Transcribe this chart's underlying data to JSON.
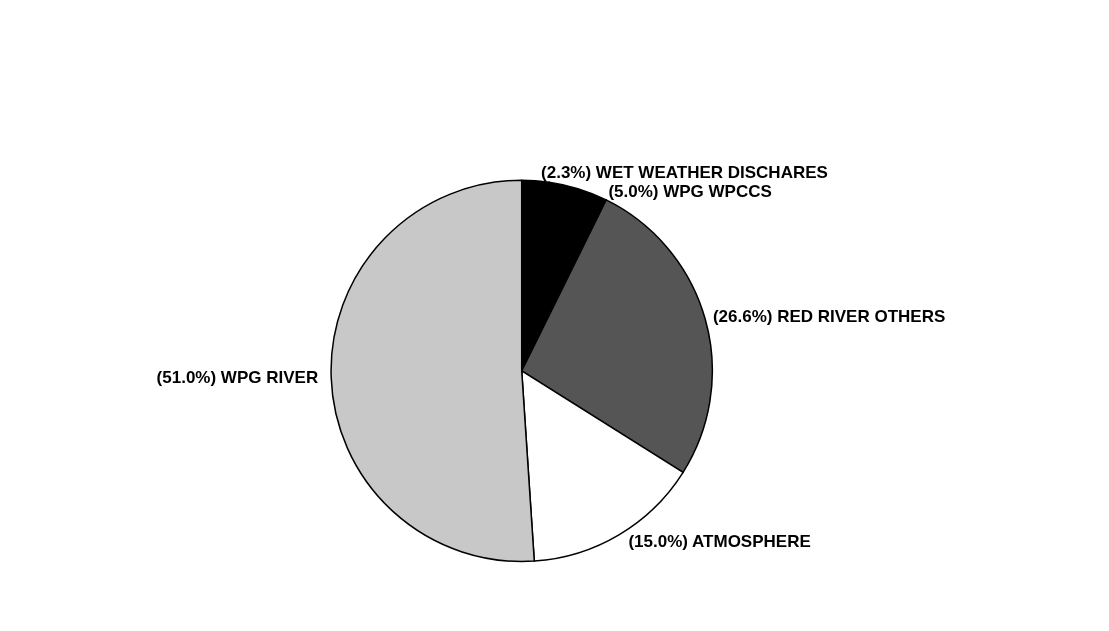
{
  "chart_data": {
    "type": "pie",
    "categories": [
      "(2.3%) WET WEATHER DISCHARES",
      "(5.0%) WPG WPCCS",
      "(26.6%) RED RIVER OTHERS",
      "(15.0%) ATMOSPHERE",
      "(51.0%) WPG RIVER"
    ],
    "values": [
      2.3,
      5.0,
      26.6,
      15.0,
      51.0
    ],
    "colors": [
      "#000000",
      "#000000",
      "#555555",
      "#ffffff",
      "#c8c8c8"
    ],
    "legend": false
  }
}
